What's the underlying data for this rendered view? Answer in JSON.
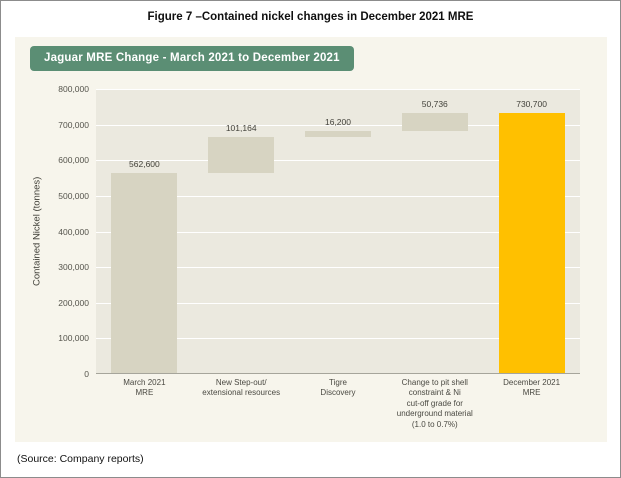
{
  "figure_title": "Figure 7 –Contained nickel changes in December 2021 MRE",
  "source_note": "(Source: Company reports)",
  "chart_data": {
    "type": "waterfall",
    "title": "Jaguar MRE Change - March 2021 to December 2021",
    "ylabel": "Contained Nickel (tonnes)",
    "ylim": [
      0,
      800000
    ],
    "grid": true,
    "legend": "none",
    "ytick_labels": [
      "0",
      "100,000",
      "200,000",
      "300,000",
      "400,000",
      "500,000",
      "600,000",
      "700,000",
      "800,000"
    ],
    "bars": [
      {
        "name": "march-2021-mre",
        "label": "March 2021\nMRE",
        "start": 0,
        "end": 562600,
        "value": 562600,
        "value_label": "562,600",
        "role": "total"
      },
      {
        "name": "new-step-out-extensional",
        "label": "New Step-out/\nextensional resources",
        "start": 562600,
        "end": 663764,
        "value": 101164,
        "value_label": "101,164",
        "role": "increase"
      },
      {
        "name": "tigre-discovery",
        "label": "Tigre\nDiscovery",
        "start": 663764,
        "end": 679964,
        "value": 16200,
        "value_label": "16,200",
        "role": "increase"
      },
      {
        "name": "pit-shell-cutoff-change",
        "label": "Change to pit shell\nconstraint & Ni\ncut-off grade for\nunderground material\n(1.0 to 0.7%)",
        "start": 679964,
        "end": 730700,
        "value": 50736,
        "value_label": "50,736",
        "role": "increase"
      },
      {
        "name": "december-2021-mre",
        "label": "December 2021\nMRE",
        "start": 0,
        "end": 730700,
        "value": 730700,
        "value_label": "730,700",
        "role": "final"
      }
    ],
    "colors": {
      "bar_default": "#d7d4c2",
      "bar_final": "#ffc000",
      "header_bg": "#5b8e74",
      "panel_bg": "#f7f5ec",
      "plot_bg": "#ebe9df",
      "gridline": "#ffffff"
    }
  }
}
